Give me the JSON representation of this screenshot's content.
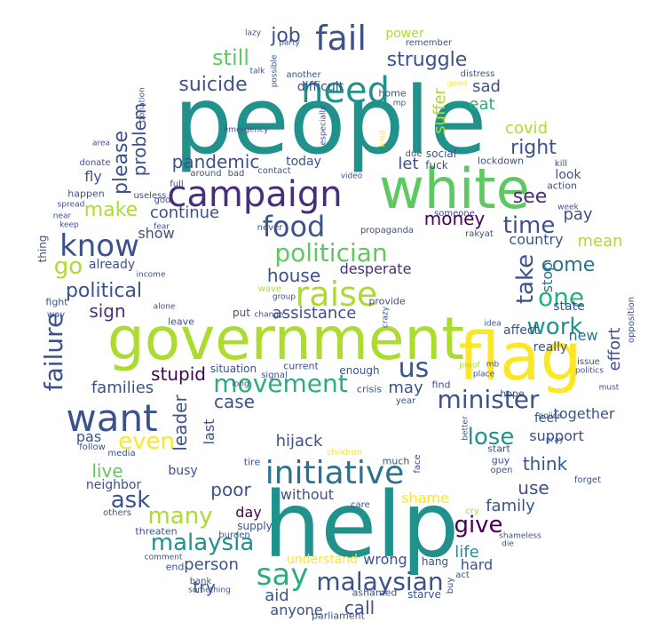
{
  "palette": [
    "#440154",
    "#472d7b",
    "#3b528b",
    "#2c728e",
    "#21918c",
    "#28ae80",
    "#5ec962",
    "#addc30",
    "#fde725"
  ],
  "words": [
    "people",
    "help",
    "government",
    "white",
    "flag",
    "campaign",
    "need",
    "fail",
    "raise",
    "want",
    "know",
    "food",
    "initiative",
    "politician",
    "say",
    "us",
    "minister",
    "movement",
    "malaysian",
    "failure",
    "one",
    "work",
    "take",
    "lose",
    "even",
    "time",
    "malaysia",
    "give",
    "ask",
    "many",
    "still",
    "suicide",
    "struggle",
    "job",
    "make",
    "see",
    "political",
    "pandemic",
    "right",
    "please",
    "problem",
    "come",
    "sign",
    "go",
    "money",
    "house",
    "stupid",
    "leader",
    "case",
    "poor",
    "live",
    "think",
    "use",
    "call",
    "family",
    "eat",
    "sad",
    "covid",
    "suffer",
    "let",
    "continue",
    "assistance",
    "desperate",
    "mean",
    "pay",
    "country",
    "effort",
    "stop",
    "new",
    "families",
    "hijack",
    "support",
    "together",
    "may",
    "life",
    "shame",
    "without",
    "person",
    "try",
    "aid",
    "anyone",
    "hard",
    "wrong",
    "day",
    "busy",
    "neighbor",
    "pas",
    "last",
    "fly",
    "show",
    "already",
    "today",
    "power",
    "difficult",
    "state",
    "affect",
    "really",
    "feel",
    "look",
    "lockdown",
    "social",
    "fuck",
    "home",
    "action",
    "understand",
    "hang",
    "starve",
    "parliament",
    "ashamed",
    "supply",
    "burden",
    "threaten",
    "end",
    "bank",
    "comment",
    "others",
    "media",
    "follow",
    "tire",
    "children",
    "much",
    "face",
    "guy",
    "start",
    "open",
    "forget",
    "cry",
    "shameless",
    "die",
    "buy",
    "act",
    "care",
    "something",
    "long",
    "signal",
    "crisis",
    "enough",
    "situation",
    "current",
    "hope",
    "find",
    "year",
    "place",
    "mb",
    "police",
    "better",
    "pray",
    "proof",
    "idea",
    "politics",
    "must",
    "issue",
    "opposition",
    "crazy",
    "provide",
    "group",
    "wave",
    "change",
    "put",
    "leave",
    "alone",
    "income",
    "fight",
    "way",
    "thing",
    "keep",
    "near",
    "fear",
    "happen",
    "donate",
    "spread",
    "useless",
    "god",
    "area",
    "full",
    "around",
    "bad",
    "contact",
    "video",
    "due",
    "someone",
    "propaganda",
    "rakyat",
    "never",
    "kill",
    "week",
    "kind",
    "distress",
    "good",
    "remember",
    "another",
    "party",
    "talk",
    "lazy",
    "possible",
    "especially",
    "emergency",
    "donation",
    "mp"
  ]
}
